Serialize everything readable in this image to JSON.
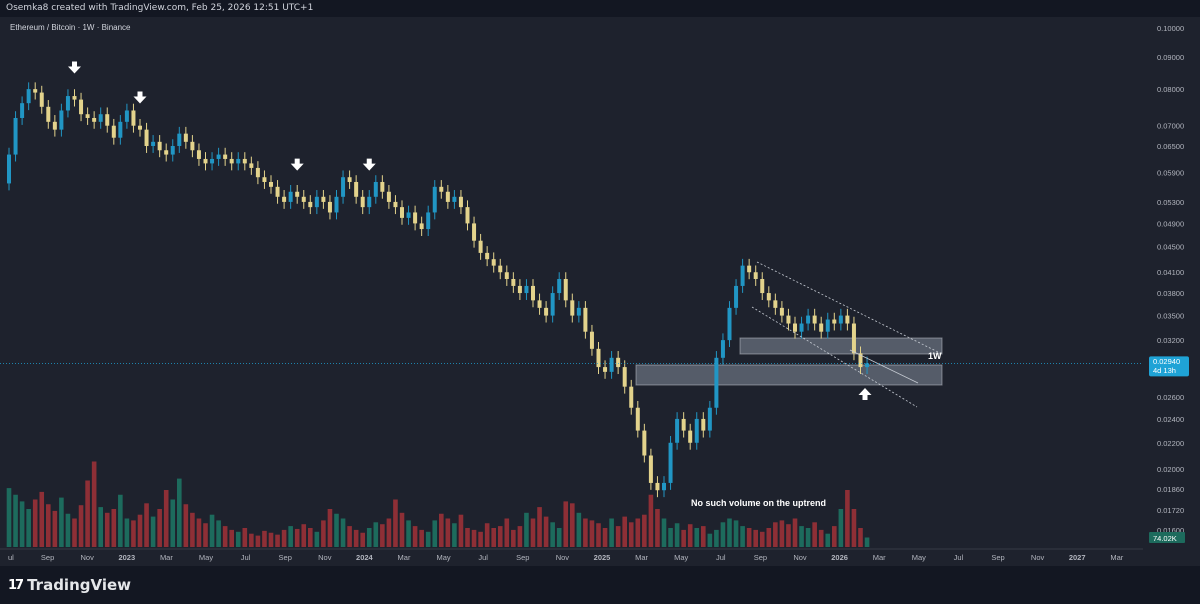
{
  "header": {
    "attribution": "Osemka8 created with TradingView.com, Feb 25, 2026 12:51 UTC+1"
  },
  "footer": {
    "brand": "TradingView"
  },
  "colors": {
    "background": "#1e222d",
    "up": "#2196c4",
    "down": "#e3d38c",
    "volume_up": "#1d6b5d",
    "volume_down": "#8e2f36",
    "price_tag": "#1fa3d6",
    "zone": "#9aa5b4"
  },
  "chart_data": {
    "type": "candlestick",
    "title": "Ethereum / Bitcoin · 1W · Binance",
    "price_axis": {
      "scale": "log",
      "range": [
        0.0155,
        0.103
      ],
      "ticks": [
        "0.10000",
        "0.09000",
        "0.08000",
        "0.07000",
        "0.06500",
        "0.05900",
        "0.05300",
        "0.04900",
        "0.04500",
        "0.04100",
        "0.03800",
        "0.03500",
        "0.03200",
        "0.02600",
        "0.02400",
        "0.02200",
        "0.02000",
        "0.01860",
        "0.01720",
        "0.01600"
      ]
    },
    "time_axis": {
      "ticks": [
        "ul",
        "Sep",
        "Nov",
        "2023",
        "Mar",
        "May",
        "Jul",
        "Sep",
        "Nov",
        "2024",
        "Mar",
        "May",
        "Jul",
        "Sep",
        "Nov",
        "2025",
        "Mar",
        "May",
        "Jul",
        "Sep",
        "Nov",
        "2026",
        "Mar",
        "May",
        "Jul",
        "Sep",
        "Nov",
        "2027",
        "Mar"
      ],
      "bold_ticks": [
        "2023",
        "2024",
        "2025",
        "2026",
        "2027"
      ]
    },
    "current_price": {
      "value": "0.02940",
      "countdown": "4d 13h"
    },
    "volume_label": "74.02K",
    "weekly_close_path": [
      0.063,
      0.072,
      0.076,
      0.08,
      0.079,
      0.075,
      0.071,
      0.069,
      0.074,
      0.078,
      0.077,
      0.073,
      0.072,
      0.071,
      0.073,
      0.07,
      0.067,
      0.071,
      0.074,
      0.07,
      0.069,
      0.065,
      0.066,
      0.064,
      0.063,
      0.065,
      0.068,
      0.066,
      0.064,
      0.062,
      0.061,
      0.062,
      0.063,
      0.062,
      0.061,
      0.062,
      0.061,
      0.06,
      0.058,
      0.057,
      0.056,
      0.054,
      0.053,
      0.055,
      0.054,
      0.053,
      0.052,
      0.054,
      0.053,
      0.051,
      0.054,
      0.058,
      0.057,
      0.054,
      0.052,
      0.054,
      0.057,
      0.055,
      0.053,
      0.052,
      0.05,
      0.051,
      0.049,
      0.048,
      0.051,
      0.056,
      0.055,
      0.053,
      0.054,
      0.052,
      0.049,
      0.046,
      0.044,
      0.043,
      0.042,
      0.041,
      0.04,
      0.039,
      0.038,
      0.039,
      0.037,
      0.036,
      0.035,
      0.038,
      0.04,
      0.037,
      0.035,
      0.036,
      0.033,
      0.031,
      0.029,
      0.0285,
      0.03,
      0.029,
      0.027,
      0.025,
      0.023,
      0.021,
      0.019,
      0.0185,
      0.019,
      0.022,
      0.024,
      0.023,
      0.022,
      0.024,
      0.023,
      0.025,
      0.03,
      0.032,
      0.036,
      0.039,
      0.042,
      0.041,
      0.04,
      0.038,
      0.037,
      0.036,
      0.035,
      0.034,
      0.033,
      0.034,
      0.035,
      0.034,
      0.033,
      0.0345,
      0.034,
      0.035,
      0.034,
      0.0305,
      0.029,
      0.0294
    ],
    "volume_relative": [
      0.62,
      0.55,
      0.48,
      0.4,
      0.5,
      0.58,
      0.45,
      0.38,
      0.52,
      0.35,
      0.3,
      0.44,
      0.7,
      0.9,
      0.42,
      0.36,
      0.4,
      0.55,
      0.3,
      0.28,
      0.34,
      0.46,
      0.32,
      0.4,
      0.6,
      0.5,
      0.72,
      0.45,
      0.36,
      0.3,
      0.25,
      0.34,
      0.28,
      0.22,
      0.18,
      0.16,
      0.2,
      0.14,
      0.12,
      0.17,
      0.15,
      0.13,
      0.18,
      0.22,
      0.19,
      0.24,
      0.2,
      0.16,
      0.28,
      0.4,
      0.35,
      0.3,
      0.22,
      0.18,
      0.15,
      0.2,
      0.26,
      0.24,
      0.3,
      0.5,
      0.36,
      0.28,
      0.22,
      0.18,
      0.16,
      0.28,
      0.35,
      0.3,
      0.25,
      0.34,
      0.2,
      0.18,
      0.16,
      0.25,
      0.2,
      0.22,
      0.3,
      0.18,
      0.22,
      0.36,
      0.3,
      0.42,
      0.32,
      0.26,
      0.2,
      0.48,
      0.46,
      0.36,
      0.3,
      0.28,
      0.25,
      0.2,
      0.3,
      0.22,
      0.32,
      0.26,
      0.3,
      0.34,
      0.55,
      0.4,
      0.3,
      0.2,
      0.25,
      0.18,
      0.24,
      0.2,
      0.22,
      0.14,
      0.18,
      0.26,
      0.3,
      0.28,
      0.22,
      0.2,
      0.18,
      0.16,
      0.2,
      0.26,
      0.28,
      0.24,
      0.3,
      0.22,
      0.2,
      0.26,
      0.18,
      0.14,
      0.22,
      0.4,
      0.6,
      0.4,
      0.2,
      0.1
    ],
    "annotations": {
      "timeframe_label": "1W",
      "volume_note": "No such volume on the uptrend"
    },
    "down_arrows_at_week": [
      10,
      20,
      44,
      55
    ],
    "up_arrow_at_week": 133
  }
}
